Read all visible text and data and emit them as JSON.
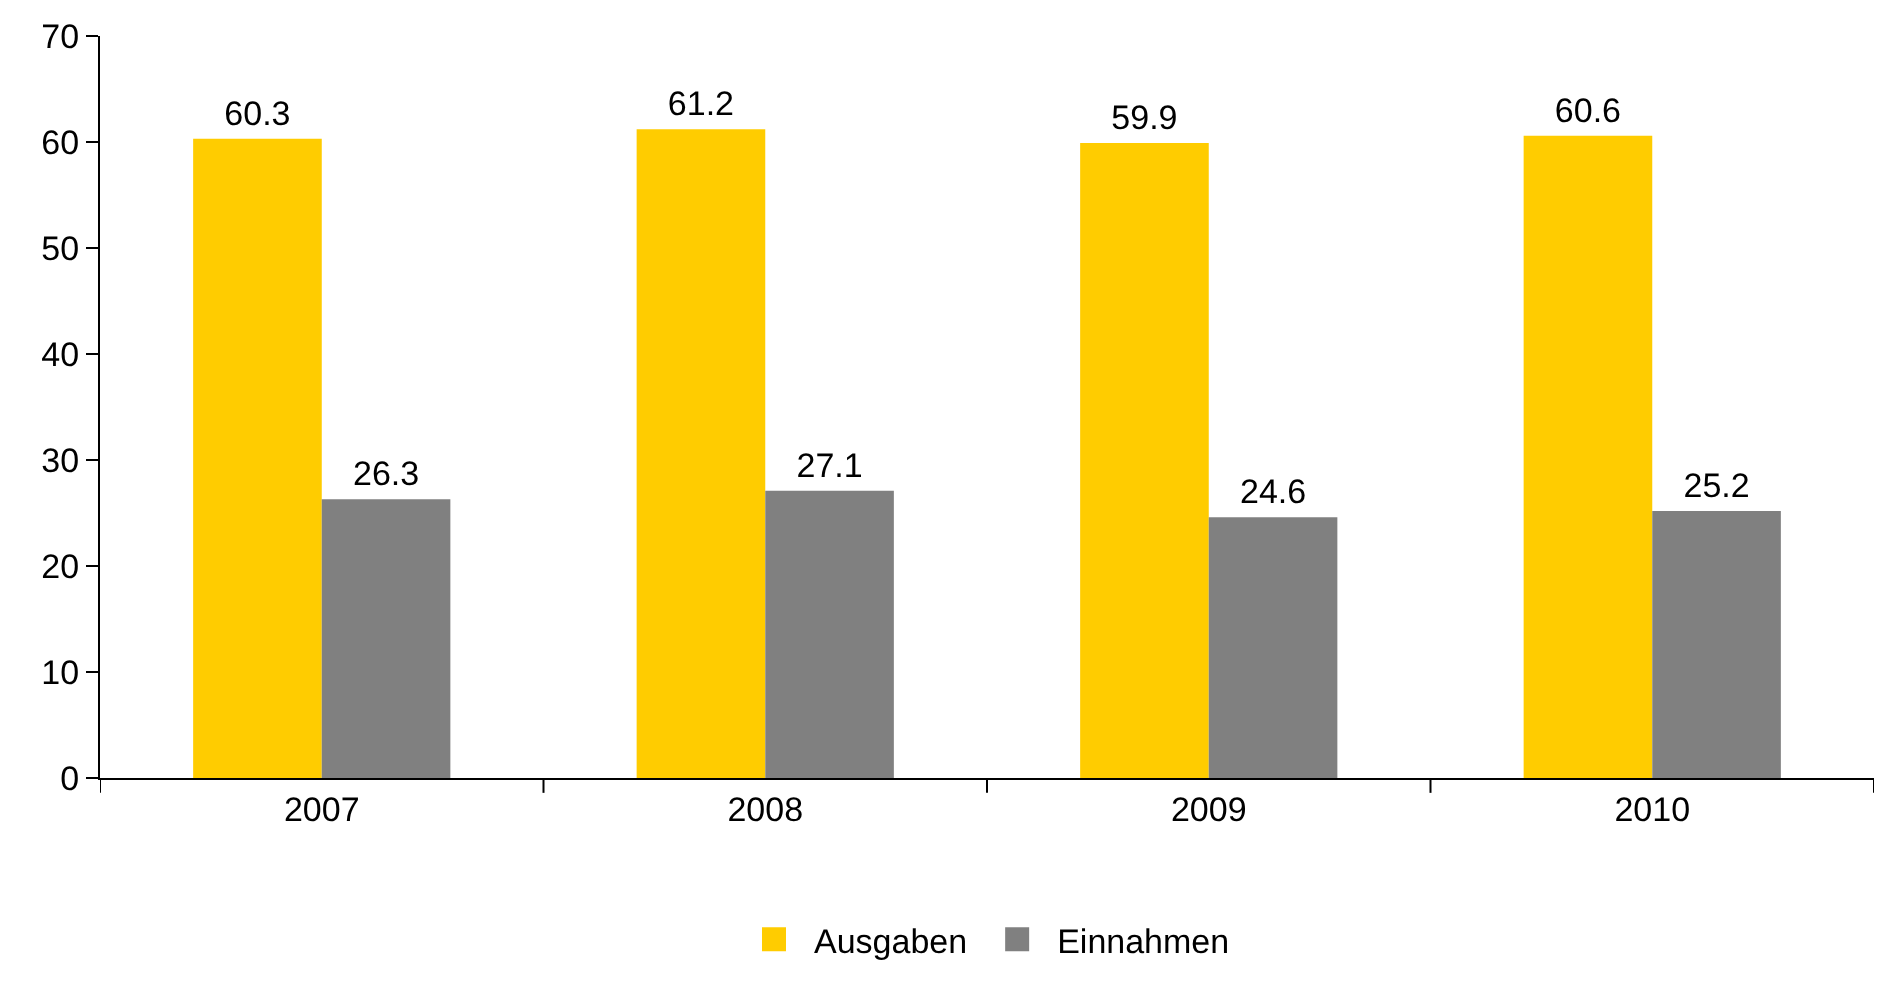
{
  "chart_data": {
    "type": "bar",
    "categories": [
      "2007",
      "2008",
      "2009",
      "2010"
    ],
    "series": [
      {
        "name": "Ausgaben",
        "color": "#ffcc00",
        "values": [
          60.3,
          61.2,
          59.9,
          60.6
        ]
      },
      {
        "name": "Einnahmen",
        "color": "#808080",
        "values": [
          26.3,
          27.1,
          24.6,
          25.2
        ]
      }
    ],
    "ylim": [
      0,
      70
    ],
    "yticks": [
      0,
      10,
      20,
      30,
      40,
      50,
      60,
      70
    ],
    "grid": false,
    "legend": "bottom",
    "data_labels": true
  }
}
